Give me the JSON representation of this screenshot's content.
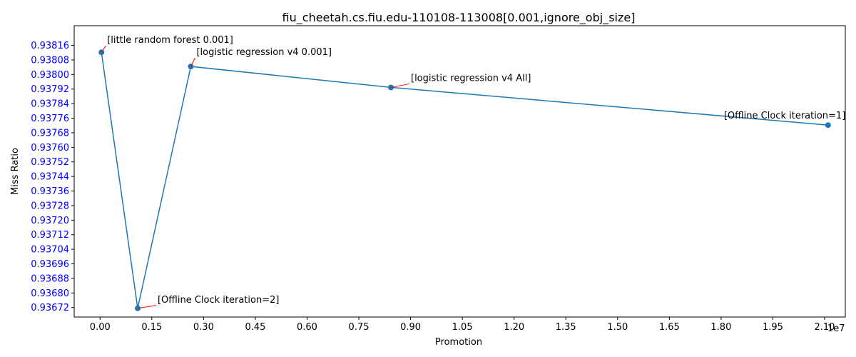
{
  "chart_data": {
    "type": "line",
    "title": "fiu_cheetah.cs.fiu.edu-110108-113008[0.001,ignore_obj_size]",
    "xlabel": "Promotion",
    "ylabel": "Miss Ratio",
    "x_offset_label": "1e7",
    "xlim": [
      -0.75,
      21.6
    ],
    "ylim": [
      0.936668,
      0.938268
    ],
    "x_ticks": [
      0,
      1.5,
      3,
      4.5,
      6,
      7.5,
      9,
      10.5,
      12,
      13.5,
      15,
      16.5,
      18,
      19.5,
      21
    ],
    "x_tick_labels": [
      "0.00",
      "0.15",
      "0.30",
      "0.45",
      "0.60",
      "0.75",
      "0.90",
      "1.05",
      "1.20",
      "1.35",
      "1.50",
      "1.65",
      "1.80",
      "1.95",
      "2.10"
    ],
    "y_ticks": [
      0.93672,
      0.9368,
      0.93688,
      0.93696,
      0.93704,
      0.93712,
      0.9372,
      0.93728,
      0.93736,
      0.93744,
      0.93752,
      0.9376,
      0.93768,
      0.93776,
      0.93784,
      0.93792,
      0.938,
      0.93808,
      0.93816
    ],
    "y_tick_labels": [
      "0.93672",
      "0.93680",
      "0.93688",
      "0.93696",
      "0.93704",
      "0.93712",
      "0.93720",
      "0.93728",
      "0.93736",
      "0.93744",
      "0.93752",
      "0.93760",
      "0.93768",
      "0.93776",
      "0.93784",
      "0.93792",
      "0.93800",
      "0.93808",
      "0.93816"
    ],
    "grid": false,
    "line_color": "#1f77b4",
    "annotation_line_color": "#ff0000",
    "ytick_color": "#0000ff",
    "points": [
      {
        "x": 0.04,
        "y": 0.938122,
        "label": "[little random forest 0.001]"
      },
      {
        "x": 1.09,
        "y": 0.936716,
        "label": "[Offline Clock iteration=2]"
      },
      {
        "x": 2.63,
        "y": 0.938044,
        "label": "[logistic regression v4 0.001]"
      },
      {
        "x": 8.43,
        "y": 0.937929,
        "label": "[logistic regression v4 All]"
      },
      {
        "x": 21.1,
        "y": 0.937722,
        "label": "[Offline Clock iteration=1]"
      }
    ]
  }
}
